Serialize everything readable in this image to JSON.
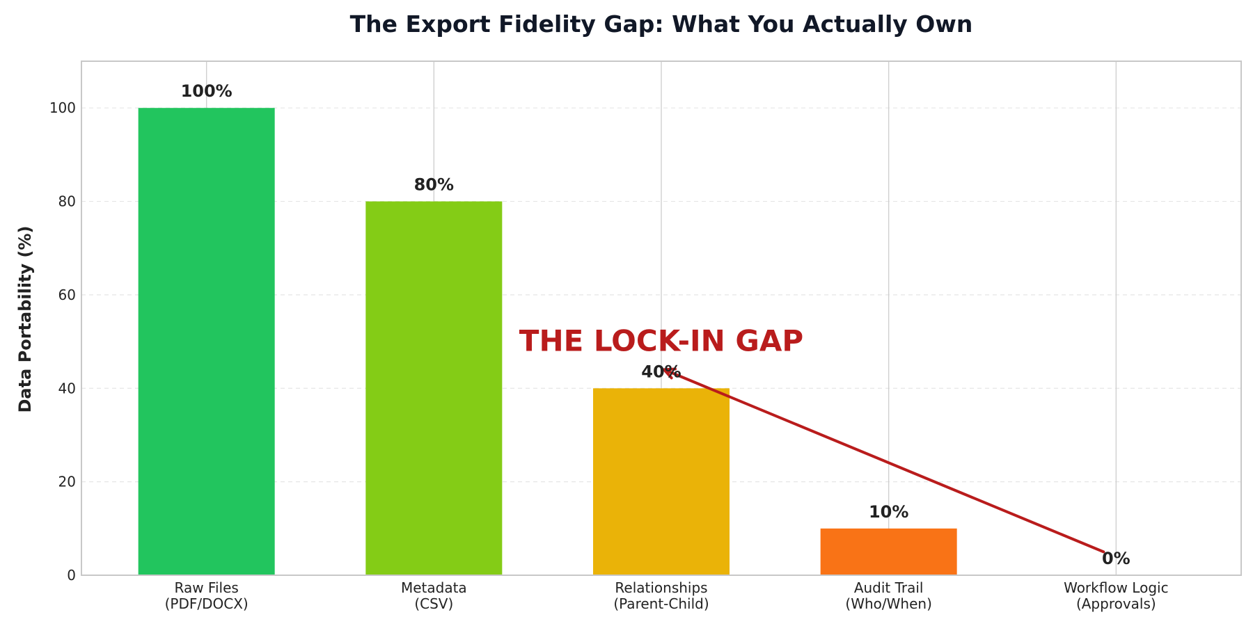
{
  "chart_data": {
    "type": "bar",
    "title": "The Export Fidelity Gap: What You Actually Own",
    "xlabel": "",
    "ylabel": "Data Portability (%)",
    "ylim": [
      0,
      110
    ],
    "yticks": [
      0,
      20,
      40,
      60,
      80,
      100
    ],
    "grid": true,
    "categories": [
      [
        "Raw Files",
        "(PDF/DOCX)"
      ],
      [
        "Metadata",
        "(CSV)"
      ],
      [
        "Relationships",
        "(Parent-Child)"
      ],
      [
        "Audit Trail",
        "(Who/When)"
      ],
      [
        "Workflow Logic",
        "(Approvals)"
      ]
    ],
    "values": [
      100,
      80,
      40,
      10,
      0
    ],
    "value_labels": [
      "100%",
      "80%",
      "40%",
      "10%",
      "0%"
    ],
    "colors": [
      "#22c55e",
      "#84cc16",
      "#eab308",
      "#f97316",
      "#ef4444"
    ],
    "annotation": {
      "text": "THE LOCK-IN GAP",
      "color": "#b91c1c",
      "arrow_from": {
        "category_index": 4,
        "y": 5
      },
      "arrow_to": {
        "category_index": 2,
        "y": 44
      },
      "text_anchor": {
        "category_index": 2,
        "y": 48
      }
    }
  }
}
